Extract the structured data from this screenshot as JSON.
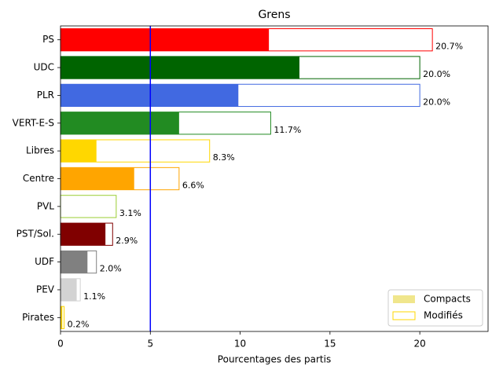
{
  "chart_data": {
    "type": "bar",
    "orientation": "horizontal",
    "title": "Grens",
    "xlabel": "Pourcentages des partis",
    "ylabel": "",
    "xlim": [
      0,
      23.8
    ],
    "xticks": [
      0,
      5,
      10,
      15,
      20
    ],
    "reference_line": {
      "x": 5,
      "color": "#0000ff"
    },
    "legend": {
      "placement": "bottom-right",
      "entries": [
        {
          "label": "Compacts",
          "style": "filled",
          "color": "#f0e68c"
        },
        {
          "label": "Modifiés",
          "style": "outline",
          "color": "#ffd700"
        }
      ]
    },
    "categories": [
      "PS",
      "UDC",
      "PLR",
      "VERT-E-S",
      "Libres",
      "Centre",
      "PVL",
      "PST/Sol.",
      "UDF",
      "PEV",
      "Pirates"
    ],
    "series": [
      {
        "name": "Compacts",
        "values": [
          11.6,
          13.3,
          9.9,
          6.6,
          2.0,
          4.1,
          0.0,
          2.5,
          1.5,
          0.9,
          0.1
        ]
      },
      {
        "name": "Modifiés",
        "values": [
          20.7,
          20.0,
          20.0,
          11.7,
          8.3,
          6.6,
          3.1,
          2.9,
          2.0,
          1.1,
          0.2
        ]
      }
    ],
    "value_labels": [
      "20.7%",
      "20.0%",
      "20.0%",
      "11.7%",
      "8.3%",
      "6.6%",
      "3.1%",
      "2.9%",
      "2.0%",
      "1.1%",
      "0.2%"
    ],
    "colors": [
      "#ff0000",
      "#006400",
      "#4169e1",
      "#228b22",
      "#ffd700",
      "#ffa500",
      "#9acd32",
      "#800000",
      "#808080",
      "#d3d3d3",
      "#ffd700"
    ]
  }
}
